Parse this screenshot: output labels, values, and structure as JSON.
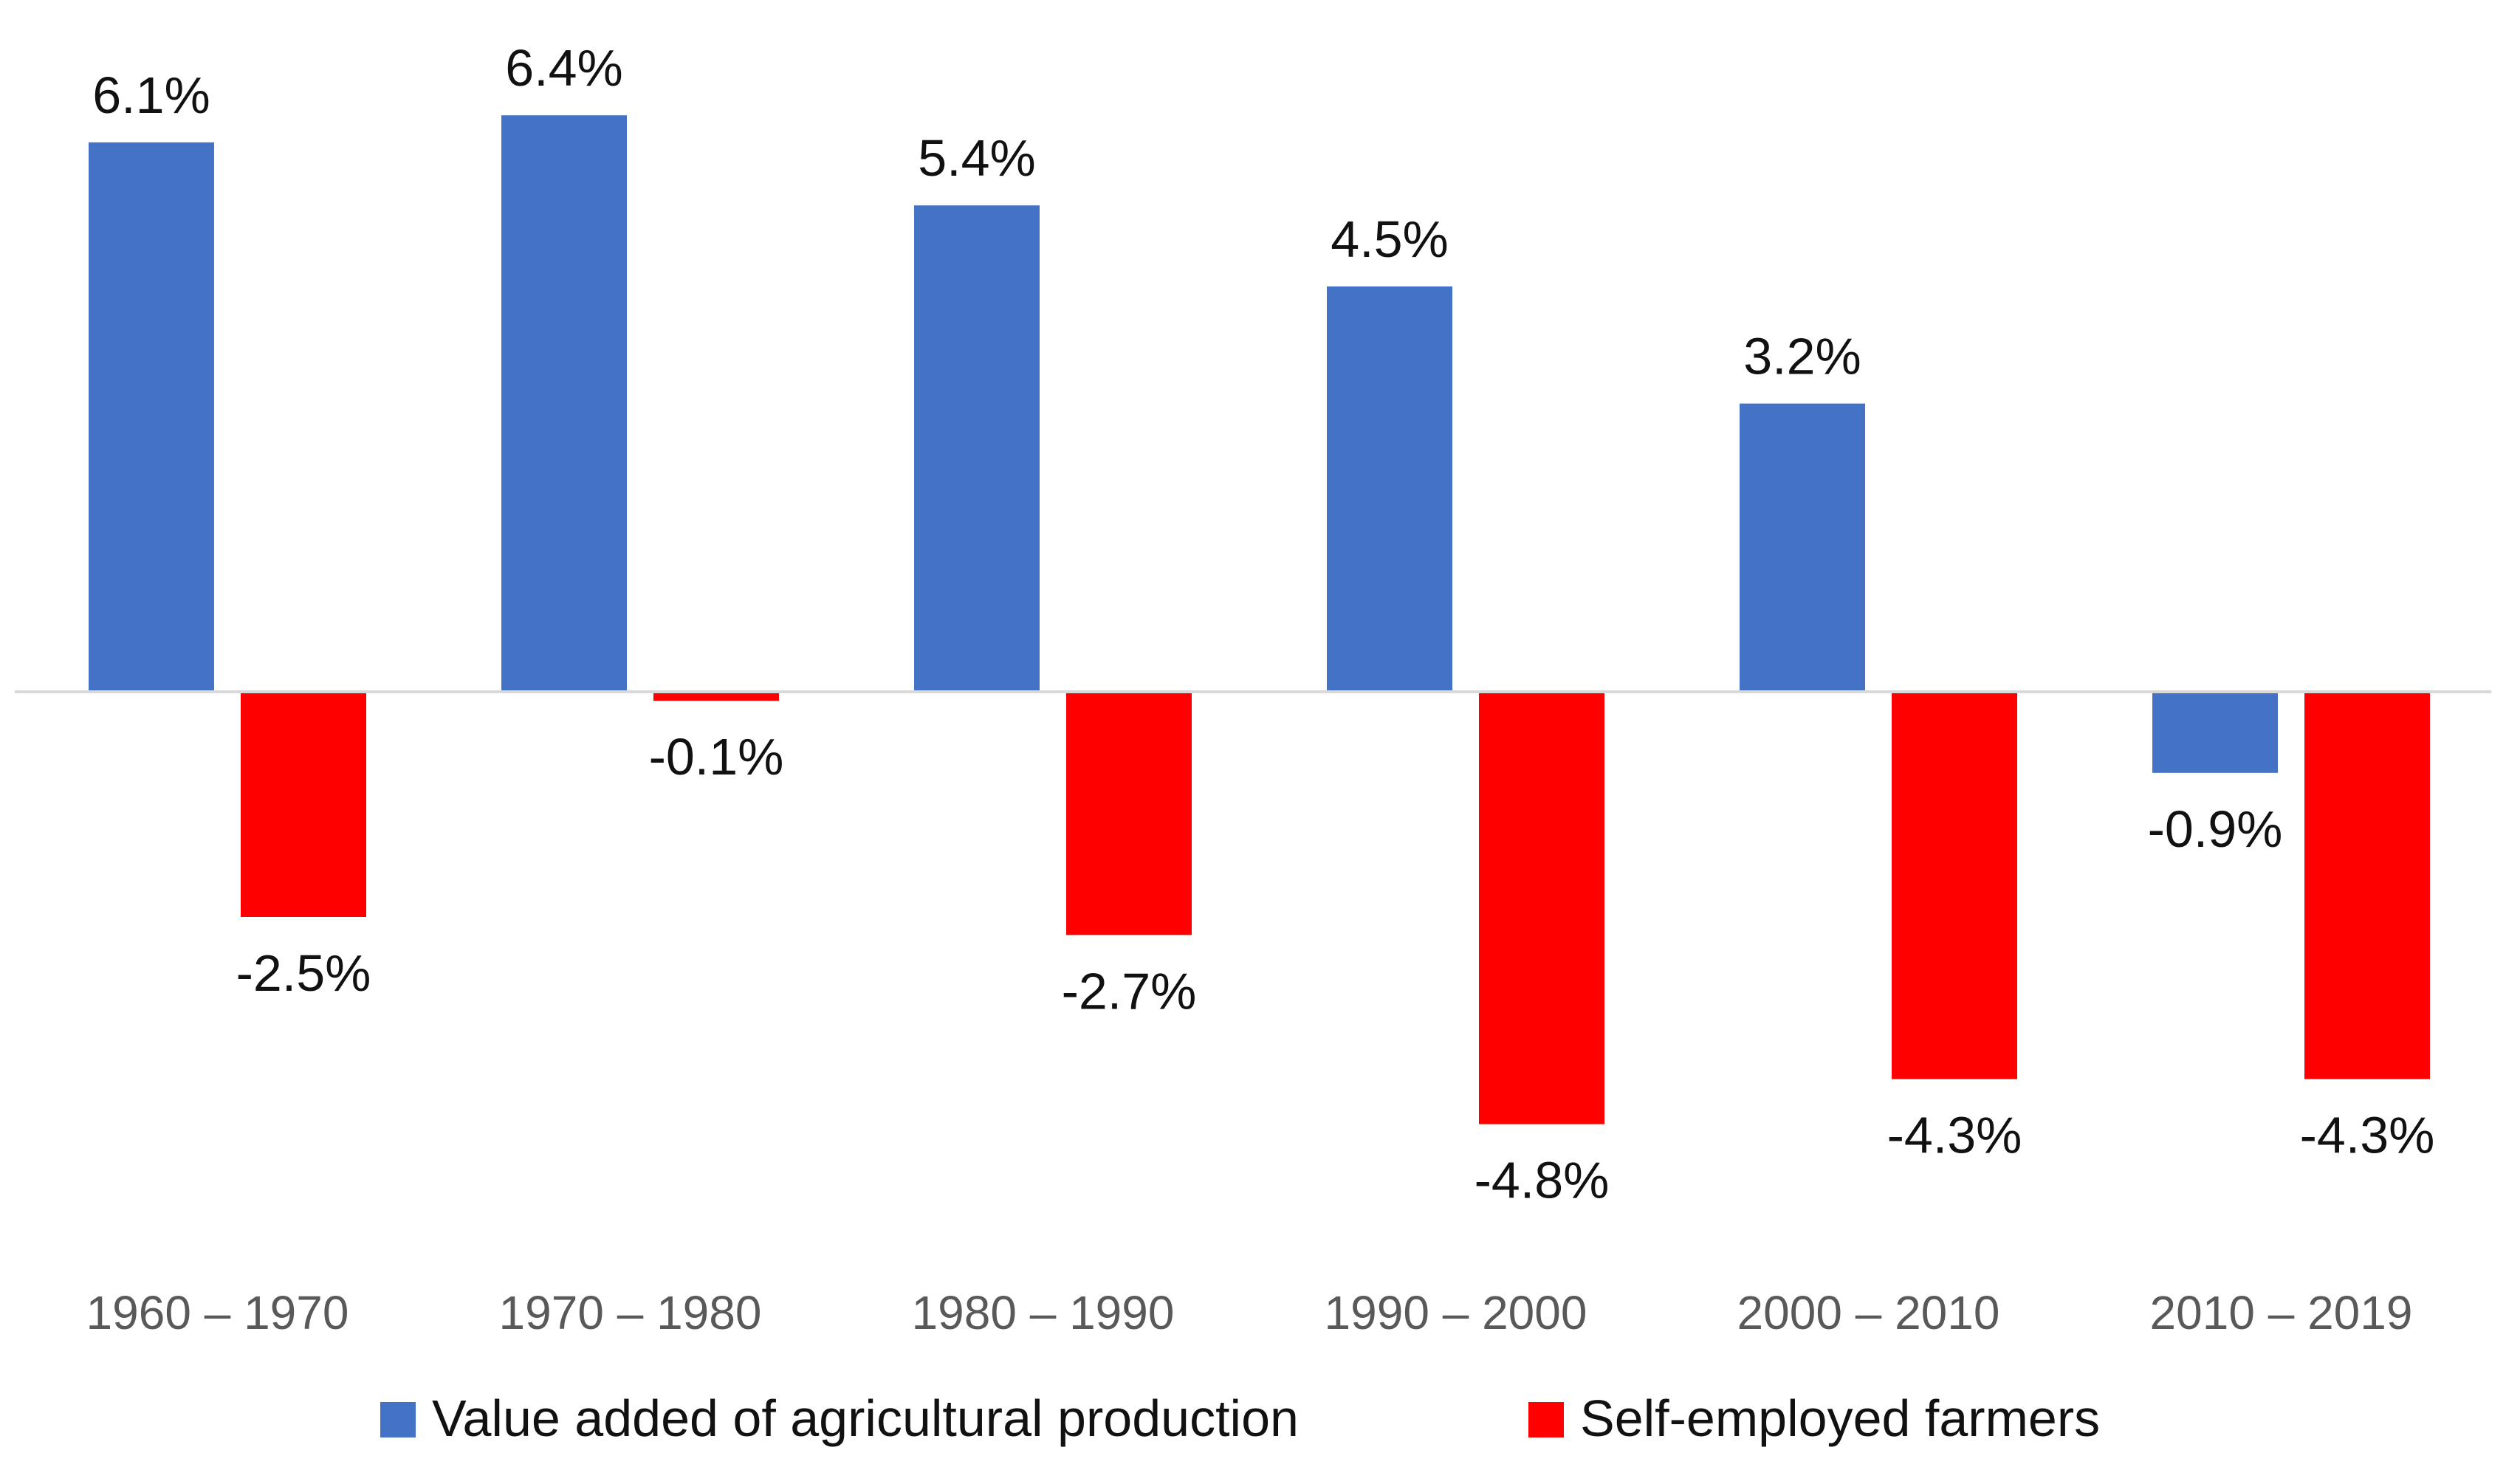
{
  "chart_data": {
    "type": "bar",
    "title": "",
    "xlabel": "",
    "ylabel": "",
    "categories": [
      "1960 – 1970",
      "1970 – 1980",
      "1980 – 1990",
      "1990 – 2000",
      "2000 – 2010",
      "2010 – 2019"
    ],
    "series": [
      {
        "name": "Value added of agricultural production",
        "color": "#4472C4",
        "values": [
          6.1,
          6.4,
          5.4,
          4.5,
          3.2,
          -0.9
        ],
        "labels": [
          "6.1%",
          "6.4%",
          "5.4%",
          "4.5%",
          "3.2%",
          "-0.9%"
        ]
      },
      {
        "name": "Self-employed farmers",
        "color": "#FF0000",
        "values": [
          -2.5,
          -0.1,
          -2.7,
          -4.8,
          -4.3,
          -4.3
        ],
        "labels": [
          "-2.5%",
          "-0.1%",
          "-2.7%",
          "-4.8%",
          "-4.3%",
          "-4.3%"
        ]
      }
    ],
    "ylim": [
      -6.0,
      7.0
    ],
    "grid": false,
    "axis_color": "#D9D9D9",
    "legend_position": "bottom"
  }
}
